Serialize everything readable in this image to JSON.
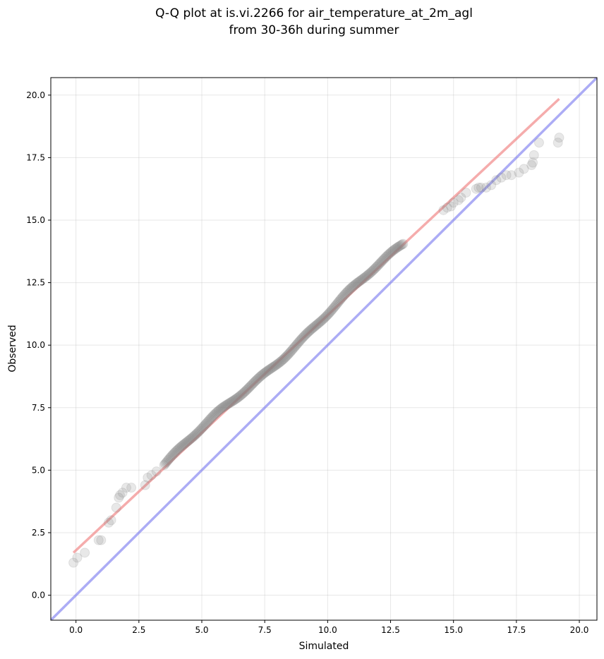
{
  "chart_data": {
    "type": "scatter",
    "title": [
      "Q-Q plot at is.vi.2266 for air_temperature_at_2m_agl",
      "from 30-36h during summer"
    ],
    "xlabel": "Simulated",
    "ylabel": "Observed",
    "xlim": [
      -1.0,
      20.7
    ],
    "ylim": [
      -1.0,
      20.7
    ],
    "xticks": [
      0.0,
      2.5,
      5.0,
      7.5,
      10.0,
      12.5,
      15.0,
      17.5,
      20.0
    ],
    "yticks": [
      0.0,
      2.5,
      5.0,
      7.5,
      10.0,
      12.5,
      15.0,
      17.5,
      20.0
    ],
    "xtick_labels": [
      "0.0",
      "2.5",
      "5.0",
      "7.5",
      "10.0",
      "12.5",
      "15.0",
      "17.5",
      "20.0"
    ],
    "ytick_labels": [
      "0.0",
      "2.5",
      "5.0",
      "7.5",
      "10.0",
      "12.5",
      "15.0",
      "17.5",
      "20.0"
    ],
    "grid": true,
    "colors": {
      "points": "#808080",
      "fit_line": "#f08080",
      "identity_line": "#8080f0"
    },
    "identity_line": {
      "x": [
        -1.0,
        20.7
      ],
      "y": [
        -1.0,
        20.7
      ]
    },
    "fit_line": {
      "x": [
        -0.1,
        19.2
      ],
      "y": [
        1.7,
        19.85
      ]
    },
    "sparse_points": {
      "x": [
        -0.1,
        0.05,
        0.35,
        0.9,
        1.0,
        1.3,
        1.4,
        1.6,
        1.7,
        1.75,
        1.85,
        2.0,
        2.2,
        2.75,
        2.85,
        3.0,
        3.2,
        14.6,
        14.75,
        14.9,
        15.0,
        15.2,
        15.3,
        15.5,
        15.9,
        16.0,
        16.1,
        16.3,
        16.5,
        16.7,
        16.9,
        17.1,
        17.3,
        17.6,
        17.8,
        18.1,
        18.15,
        18.2,
        18.4,
        19.15,
        19.2
      ],
      "y": [
        1.3,
        1.5,
        1.7,
        2.2,
        2.2,
        2.9,
        3.0,
        3.5,
        3.9,
        4.0,
        4.1,
        4.3,
        4.3,
        4.4,
        4.7,
        4.8,
        4.95,
        15.4,
        15.5,
        15.55,
        15.7,
        15.8,
        15.9,
        16.1,
        16.25,
        16.3,
        16.3,
        16.3,
        16.4,
        16.6,
        16.7,
        16.8,
        16.8,
        16.9,
        17.05,
        17.2,
        17.3,
        17.6,
        18.1,
        18.1,
        18.3
      ]
    },
    "dense_points": {
      "x": [
        3.5,
        13.0
      ],
      "y": [
        5.2,
        14.05
      ],
      "count": 230
    }
  }
}
